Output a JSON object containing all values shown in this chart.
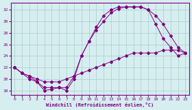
{
  "xlabel": "Windchill (Refroidissement éolien,°C)",
  "bg_color": "#d6eef0",
  "line_color": "#800080",
  "grid_color": "#aacccc",
  "xlim": [
    -0.5,
    23.5
  ],
  "ylim": [
    17.2,
    33.2
  ],
  "xticks": [
    0,
    1,
    2,
    3,
    4,
    5,
    6,
    7,
    8,
    9,
    10,
    11,
    12,
    13,
    14,
    15,
    16,
    17,
    18,
    19,
    20,
    21,
    22,
    23
  ],
  "yticks": [
    18,
    20,
    22,
    24,
    26,
    28,
    30,
    32
  ],
  "curve1_x": [
    0,
    1,
    2,
    3,
    4,
    5,
    6,
    7,
    8,
    9,
    10,
    11,
    12,
    13,
    14,
    15,
    16,
    17,
    18,
    19,
    20,
    21,
    22,
    23
  ],
  "curve1_y": [
    22.0,
    21.0,
    20.5,
    20.0,
    19.5,
    19.5,
    19.5,
    20.0,
    20.5,
    21.0,
    21.5,
    22.0,
    22.5,
    23.0,
    23.5,
    24.0,
    24.5,
    24.5,
    24.5,
    24.5,
    25.0,
    25.0,
    25.0,
    24.5
  ],
  "curve2_x": [
    0,
    1,
    2,
    3,
    4,
    5,
    6,
    7,
    8,
    9,
    10,
    11,
    12,
    13,
    14,
    15,
    16,
    17,
    18,
    19,
    20,
    21,
    22,
    23
  ],
  "curve2_y": [
    22.0,
    21.0,
    20.5,
    19.5,
    18.5,
    18.5,
    18.5,
    18.5,
    20.5,
    24.0,
    26.5,
    28.5,
    30.0,
    31.5,
    32.2,
    32.5,
    32.5,
    32.5,
    32.0,
    29.5,
    27.0,
    25.5,
    24.0,
    24.5
  ],
  "curve3_x": [
    0,
    1,
    2,
    3,
    4,
    5,
    6,
    7,
    8,
    9,
    10,
    11,
    12,
    13,
    14,
    15,
    16,
    17,
    18,
    19,
    20,
    21,
    22,
    23
  ],
  "curve3_y": [
    22.0,
    21.0,
    20.0,
    19.5,
    18.0,
    18.2,
    18.5,
    18.0,
    20.0,
    24.0,
    26.5,
    29.0,
    31.0,
    32.0,
    32.5,
    32.5,
    32.5,
    32.5,
    32.0,
    31.0,
    29.5,
    27.5,
    25.5,
    24.5
  ]
}
